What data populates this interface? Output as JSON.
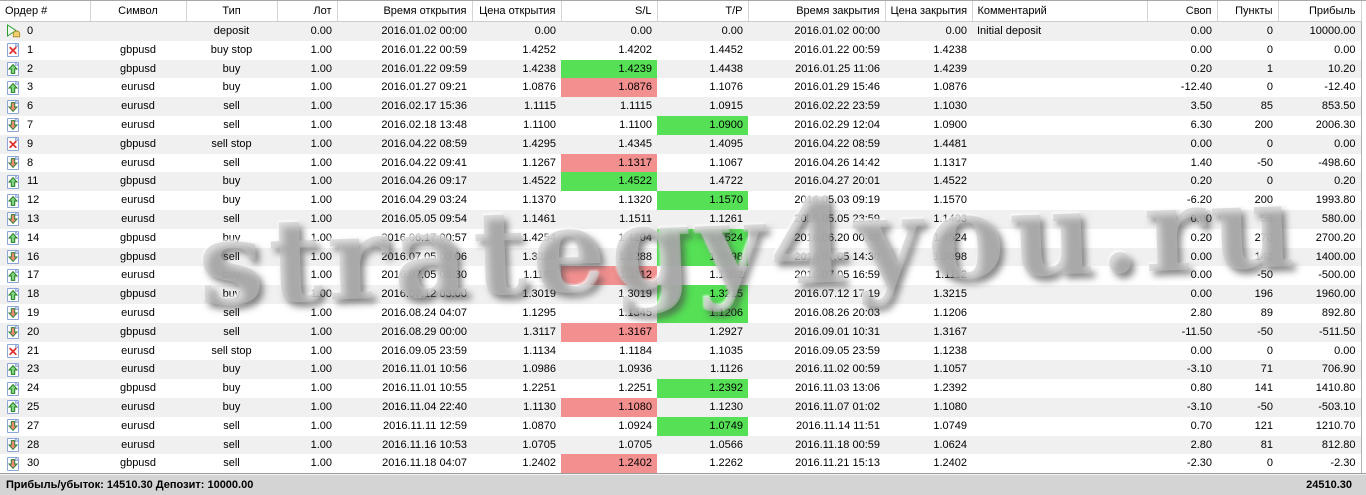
{
  "app": "metatrader-account-history",
  "colors": {
    "highlight_green": "#55e055",
    "highlight_red": "#f28f8f",
    "row_alt": "#f0f0f0",
    "status_bar_bg": "#d4d4d4"
  },
  "watermark": {
    "text": "strategy4you.ru"
  },
  "status_bar": {
    "summary": "Прибыль/убыток: 14510.30 Депозит: 10000.00",
    "total": "24510.30"
  },
  "table": {
    "columns": [
      {
        "key": "order",
        "label": "Ордер #",
        "align": "al"
      },
      {
        "key": "symbol",
        "label": "Символ",
        "align": "ac"
      },
      {
        "key": "type",
        "label": "Тип",
        "align": "ac"
      },
      {
        "key": "lot",
        "label": "Лот",
        "align": "ar"
      },
      {
        "key": "open_time",
        "label": "Время открытия",
        "align": "ar"
      },
      {
        "key": "open_price",
        "label": "Цена открытия",
        "align": "ar"
      },
      {
        "key": "sl",
        "label": "S/L",
        "align": "ar"
      },
      {
        "key": "tp",
        "label": "T/P",
        "align": "ar"
      },
      {
        "key": "close_time",
        "label": "Время закрытия",
        "align": "ar"
      },
      {
        "key": "close_price",
        "label": "Цена закрытия",
        "align": "ar"
      },
      {
        "key": "comment",
        "label": "Комментарий",
        "align": "al"
      },
      {
        "key": "swap",
        "label": "Своп",
        "align": "ar"
      },
      {
        "key": "points",
        "label": "Пункты",
        "align": "ar"
      },
      {
        "key": "profit",
        "label": "Прибыль",
        "align": "ar"
      }
    ],
    "icon_names": {
      "deposit": "deposit-icon",
      "cancelled": "cancelled-order-icon",
      "buy": "buy-order-icon",
      "sell": "sell-order-icon"
    },
    "rows": [
      {
        "order": "0",
        "icon": "deposit",
        "symbol": "",
        "type": "deposit",
        "lot": "0.00",
        "open_time": "2016.01.02 00:00",
        "open_price": "0.00",
        "sl": "0.00",
        "sl_highlight": "",
        "tp": "0.00",
        "tp_highlight": "",
        "close_time": "2016.01.02 00:00",
        "close_price": "0.00",
        "comment": "Initial deposit",
        "swap": "0.00",
        "points": "0",
        "profit": "10000.00"
      },
      {
        "order": "1",
        "icon": "cancelled",
        "symbol": "gbpusd",
        "type": "buy stop",
        "lot": "1.00",
        "open_time": "2016.01.22 00:59",
        "open_price": "1.4252",
        "sl": "1.4202",
        "sl_highlight": "",
        "tp": "1.4452",
        "tp_highlight": "",
        "close_time": "2016.01.22 00:59",
        "close_price": "1.4238",
        "comment": "",
        "swap": "0.00",
        "points": "0",
        "profit": "0.00"
      },
      {
        "order": "2",
        "icon": "buy",
        "symbol": "gbpusd",
        "type": "buy",
        "lot": "1.00",
        "open_time": "2016.01.22 09:59",
        "open_price": "1.4238",
        "sl": "1.4239",
        "sl_highlight": "green",
        "tp": "1.4438",
        "tp_highlight": "",
        "close_time": "2016.01.25 11:06",
        "close_price": "1.4239",
        "comment": "",
        "swap": "0.20",
        "points": "1",
        "profit": "10.20"
      },
      {
        "order": "3",
        "icon": "buy",
        "symbol": "eurusd",
        "type": "buy",
        "lot": "1.00",
        "open_time": "2016.01.27 09:21",
        "open_price": "1.0876",
        "sl": "1.0876",
        "sl_highlight": "red",
        "tp": "1.1076",
        "tp_highlight": "",
        "close_time": "2016.01.29 15:46",
        "close_price": "1.0876",
        "comment": "",
        "swap": "-12.40",
        "points": "0",
        "profit": "-12.40"
      },
      {
        "order": "6",
        "icon": "sell",
        "symbol": "eurusd",
        "type": "sell",
        "lot": "1.00",
        "open_time": "2016.02.17 15:36",
        "open_price": "1.1115",
        "sl": "1.1115",
        "sl_highlight": "",
        "tp": "1.0915",
        "tp_highlight": "",
        "close_time": "2016.02.22 23:59",
        "close_price": "1.1030",
        "comment": "",
        "swap": "3.50",
        "points": "85",
        "profit": "853.50"
      },
      {
        "order": "7",
        "icon": "sell",
        "symbol": "eurusd",
        "type": "sell",
        "lot": "1.00",
        "open_time": "2016.02.18 13:48",
        "open_price": "1.1100",
        "sl": "1.1100",
        "sl_highlight": "",
        "tp": "1.0900",
        "tp_highlight": "green",
        "close_time": "2016.02.29 12:04",
        "close_price": "1.0900",
        "comment": "",
        "swap": "6.30",
        "points": "200",
        "profit": "2006.30"
      },
      {
        "order": "9",
        "icon": "cancelled",
        "symbol": "gbpusd",
        "type": "sell stop",
        "lot": "1.00",
        "open_time": "2016.04.22 08:59",
        "open_price": "1.4295",
        "sl": "1.4345",
        "sl_highlight": "",
        "tp": "1.4095",
        "tp_highlight": "",
        "close_time": "2016.04.22 08:59",
        "close_price": "1.4481",
        "comment": "",
        "swap": "0.00",
        "points": "0",
        "profit": "0.00"
      },
      {
        "order": "8",
        "icon": "sell",
        "symbol": "eurusd",
        "type": "sell",
        "lot": "1.00",
        "open_time": "2016.04.22 09:41",
        "open_price": "1.1267",
        "sl": "1.1317",
        "sl_highlight": "red",
        "tp": "1.1067",
        "tp_highlight": "",
        "close_time": "2016.04.26 14:42",
        "close_price": "1.1317",
        "comment": "",
        "swap": "1.40",
        "points": "-50",
        "profit": "-498.60"
      },
      {
        "order": "11",
        "icon": "buy",
        "symbol": "gbpusd",
        "type": "buy",
        "lot": "1.00",
        "open_time": "2016.04.26 09:17",
        "open_price": "1.4522",
        "sl": "1.4522",
        "sl_highlight": "green",
        "tp": "1.4722",
        "tp_highlight": "",
        "close_time": "2016.04.27 20:01",
        "close_price": "1.4522",
        "comment": "",
        "swap": "0.20",
        "points": "0",
        "profit": "0.20"
      },
      {
        "order": "12",
        "icon": "buy",
        "symbol": "eurusd",
        "type": "buy",
        "lot": "1.00",
        "open_time": "2016.04.29 03:24",
        "open_price": "1.1370",
        "sl": "1.1320",
        "sl_highlight": "",
        "tp": "1.1570",
        "tp_highlight": "green",
        "close_time": "2016.05.03 09:19",
        "close_price": "1.1570",
        "comment": "",
        "swap": "-6.20",
        "points": "200",
        "profit": "1993.80"
      },
      {
        "order": "13",
        "icon": "sell",
        "symbol": "eurusd",
        "type": "sell",
        "lot": "1.00",
        "open_time": "2016.05.05 09:54",
        "open_price": "1.1461",
        "sl": "1.1511",
        "sl_highlight": "",
        "tp": "1.1261",
        "tp_highlight": "",
        "close_time": "2016.05.05 23:59",
        "close_price": "1.1403",
        "comment": "",
        "swap": "0.00",
        "points": "58",
        "profit": "580.00"
      },
      {
        "order": "14",
        "icon": "buy",
        "symbol": "gbpusd",
        "type": "buy",
        "lot": "1.00",
        "open_time": "2016.06.17 00:57",
        "open_price": "1.4254",
        "sl": "1.4204",
        "sl_highlight": "",
        "tp": "1.4524",
        "tp_highlight": "green",
        "close_time": "2016.06.20 00:48",
        "close_price": "1.4524",
        "comment": "",
        "swap": "0.20",
        "points": "270",
        "profit": "2700.20"
      },
      {
        "order": "16",
        "icon": "sell",
        "symbol": "gbpusd",
        "type": "sell",
        "lot": "1.00",
        "open_time": "2016.07.05 08:06",
        "open_price": "1.3238",
        "sl": "1.3288",
        "sl_highlight": "",
        "tp": "1.3098",
        "tp_highlight": "green",
        "close_time": "2016.07.05 14:30",
        "close_price": "1.3098",
        "comment": "",
        "swap": "0.00",
        "points": "140",
        "profit": "1400.00"
      },
      {
        "order": "17",
        "icon": "buy",
        "symbol": "eurusd",
        "type": "buy",
        "lot": "1.00",
        "open_time": "2016.07.05 09:30",
        "open_price": "1.1162",
        "sl": "1.1112",
        "sl_highlight": "red",
        "tp": "1.1302",
        "tp_highlight": "",
        "close_time": "2016.07.05 16:59",
        "close_price": "1.1112",
        "comment": "",
        "swap": "0.00",
        "points": "-50",
        "profit": "-500.00"
      },
      {
        "order": "18",
        "icon": "buy",
        "symbol": "gbpusd",
        "type": "buy",
        "lot": "1.00",
        "open_time": "2016.07.12 03:00",
        "open_price": "1.3019",
        "sl": "1.3019",
        "sl_highlight": "",
        "tp": "1.3215",
        "tp_highlight": "green",
        "close_time": "2016.07.12 17:19",
        "close_price": "1.3215",
        "comment": "",
        "swap": "0.00",
        "points": "196",
        "profit": "1960.00"
      },
      {
        "order": "19",
        "icon": "sell",
        "symbol": "eurusd",
        "type": "sell",
        "lot": "1.00",
        "open_time": "2016.08.24 04:07",
        "open_price": "1.1295",
        "sl": "1.1345",
        "sl_highlight": "",
        "tp": "1.1206",
        "tp_highlight": "green",
        "close_time": "2016.08.26 20:03",
        "close_price": "1.1206",
        "comment": "",
        "swap": "2.80",
        "points": "89",
        "profit": "892.80"
      },
      {
        "order": "20",
        "icon": "sell",
        "symbol": "gbpusd",
        "type": "sell",
        "lot": "1.00",
        "open_time": "2016.08.29 00:00",
        "open_price": "1.3117",
        "sl": "1.3167",
        "sl_highlight": "red",
        "tp": "1.2927",
        "tp_highlight": "",
        "close_time": "2016.09.01 10:31",
        "close_price": "1.3167",
        "comment": "",
        "swap": "-11.50",
        "points": "-50",
        "profit": "-511.50"
      },
      {
        "order": "21",
        "icon": "cancelled",
        "symbol": "eurusd",
        "type": "sell stop",
        "lot": "1.00",
        "open_time": "2016.09.05 23:59",
        "open_price": "1.1134",
        "sl": "1.1184",
        "sl_highlight": "",
        "tp": "1.1035",
        "tp_highlight": "",
        "close_time": "2016.09.05 23:59",
        "close_price": "1.1238",
        "comment": "",
        "swap": "0.00",
        "points": "0",
        "profit": "0.00"
      },
      {
        "order": "23",
        "icon": "buy",
        "symbol": "eurusd",
        "type": "buy",
        "lot": "1.00",
        "open_time": "2016.11.01 10:56",
        "open_price": "1.0986",
        "sl": "1.0936",
        "sl_highlight": "",
        "tp": "1.1126",
        "tp_highlight": "",
        "close_time": "2016.11.02 00:59",
        "close_price": "1.1057",
        "comment": "",
        "swap": "-3.10",
        "points": "71",
        "profit": "706.90"
      },
      {
        "order": "24",
        "icon": "buy",
        "symbol": "gbpusd",
        "type": "buy",
        "lot": "1.00",
        "open_time": "2016.11.01 10:55",
        "open_price": "1.2251",
        "sl": "1.2251",
        "sl_highlight": "",
        "tp": "1.2392",
        "tp_highlight": "green",
        "close_time": "2016.11.03 13:06",
        "close_price": "1.2392",
        "comment": "",
        "swap": "0.80",
        "points": "141",
        "profit": "1410.80"
      },
      {
        "order": "25",
        "icon": "buy",
        "symbol": "eurusd",
        "type": "buy",
        "lot": "1.00",
        "open_time": "2016.11.04 22:40",
        "open_price": "1.1130",
        "sl": "1.1080",
        "sl_highlight": "red",
        "tp": "1.1230",
        "tp_highlight": "",
        "close_time": "2016.11.07 01:02",
        "close_price": "1.1080",
        "comment": "",
        "swap": "-3.10",
        "points": "-50",
        "profit": "-503.10"
      },
      {
        "order": "27",
        "icon": "sell",
        "symbol": "eurusd",
        "type": "sell",
        "lot": "1.00",
        "open_time": "2016.11.11 12:59",
        "open_price": "1.0870",
        "sl": "1.0924",
        "sl_highlight": "",
        "tp": "1.0749",
        "tp_highlight": "green",
        "close_time": "2016.11.14 11:51",
        "close_price": "1.0749",
        "comment": "",
        "swap": "0.70",
        "points": "121",
        "profit": "1210.70"
      },
      {
        "order": "28",
        "icon": "sell",
        "symbol": "eurusd",
        "type": "sell",
        "lot": "1.00",
        "open_time": "2016.11.16 10:53",
        "open_price": "1.0705",
        "sl": "1.0705",
        "sl_highlight": "",
        "tp": "1.0566",
        "tp_highlight": "",
        "close_time": "2016.11.18 00:59",
        "close_price": "1.0624",
        "comment": "",
        "swap": "2.80",
        "points": "81",
        "profit": "812.80"
      },
      {
        "order": "30",
        "icon": "sell",
        "symbol": "gbpusd",
        "type": "sell",
        "lot": "1.00",
        "open_time": "2016.11.18 04:07",
        "open_price": "1.2402",
        "sl": "1.2402",
        "sl_highlight": "red",
        "tp": "1.2262",
        "tp_highlight": "",
        "close_time": "2016.11.21 15:13",
        "close_price": "1.2402",
        "comment": "",
        "swap": "-2.30",
        "points": "0",
        "profit": "-2.30"
      }
    ]
  }
}
